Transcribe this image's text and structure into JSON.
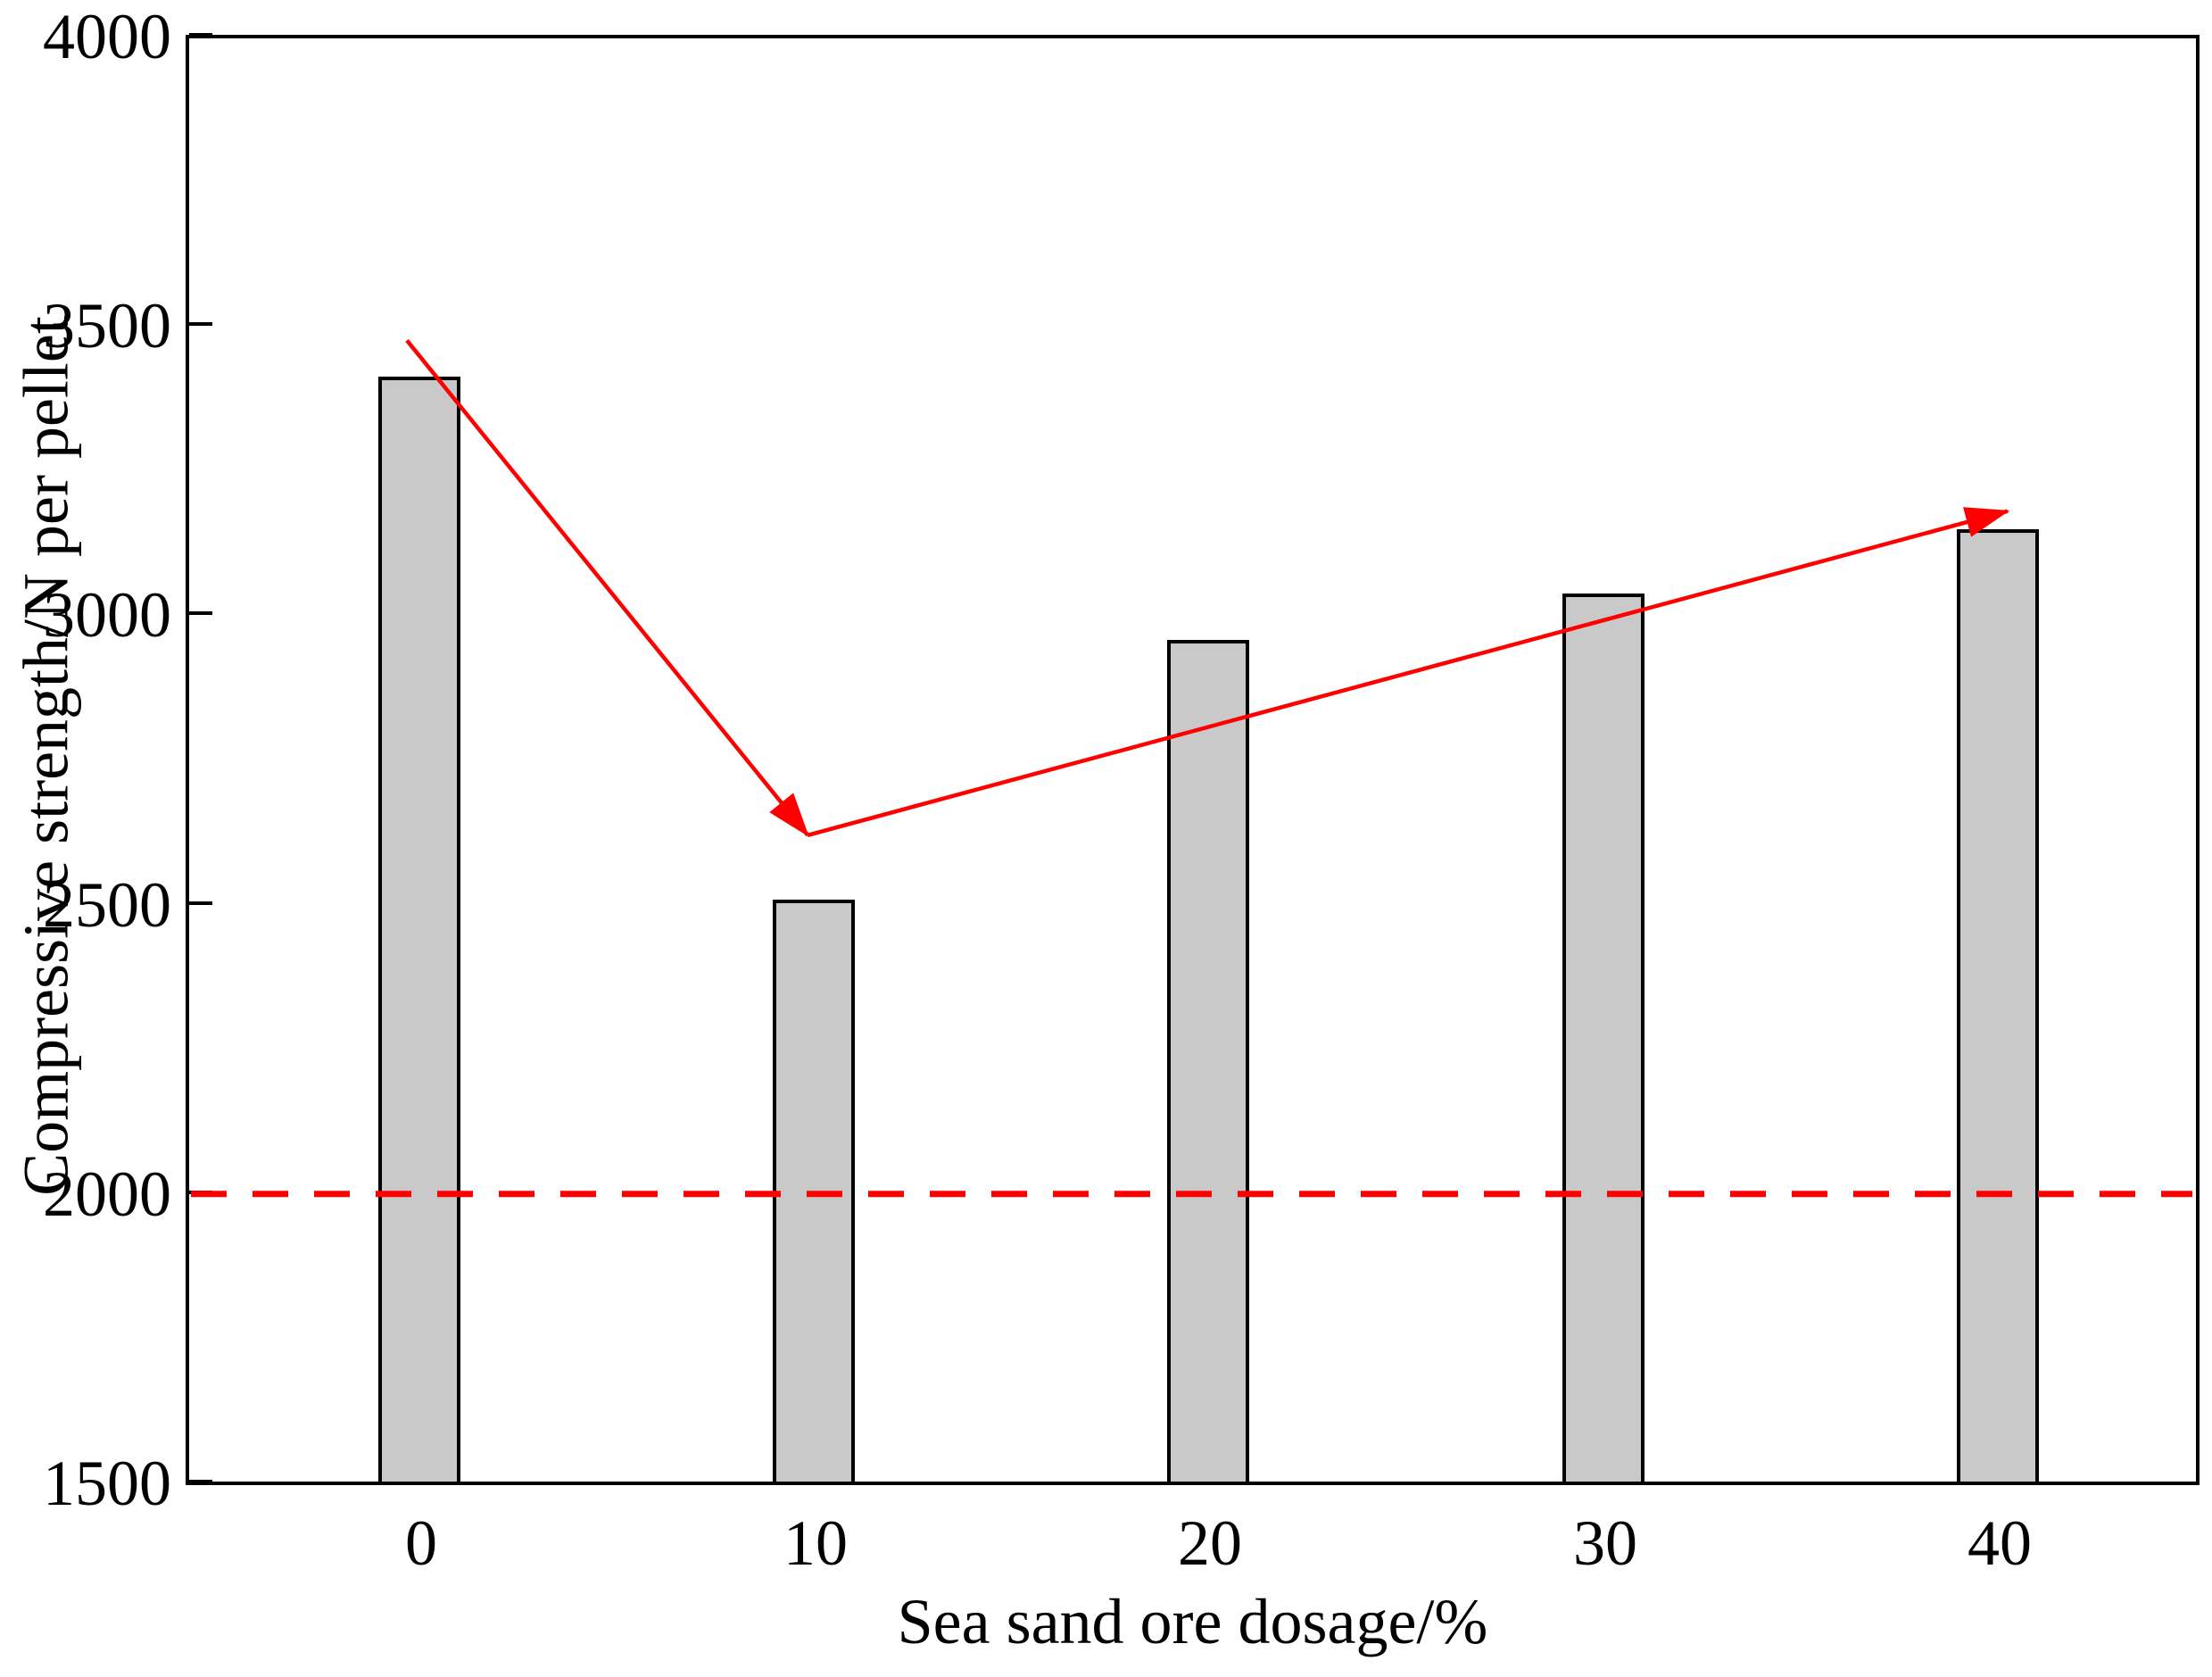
{
  "chart_data": {
    "type": "bar",
    "title": "",
    "xlabel": "Sea sand ore dosage/%",
    "ylabel": "Compressive strength/N per pellet",
    "categories": [
      "0",
      "10",
      "20",
      "30",
      "40"
    ],
    "values": [
      3410,
      2505,
      2955,
      3035,
      3145
    ],
    "ylim": [
      1500,
      4000
    ],
    "yticks": [
      1500,
      2000,
      2500,
      3000,
      3500,
      4000
    ],
    "grid": false,
    "legend": "none",
    "bar_fill_color": "#c9c9c9",
    "bar_edge_color": "#000000",
    "reference_line": {
      "value": 2000,
      "color": "#ff0000",
      "style": "dashed"
    },
    "trend_arrow": {
      "color": "#ff0000",
      "points": [
        {
          "dosage": 0,
          "strength": 3475
        },
        {
          "dosage": 10,
          "strength": 2620
        },
        {
          "dosage": 40,
          "strength": 3180
        }
      ]
    }
  }
}
